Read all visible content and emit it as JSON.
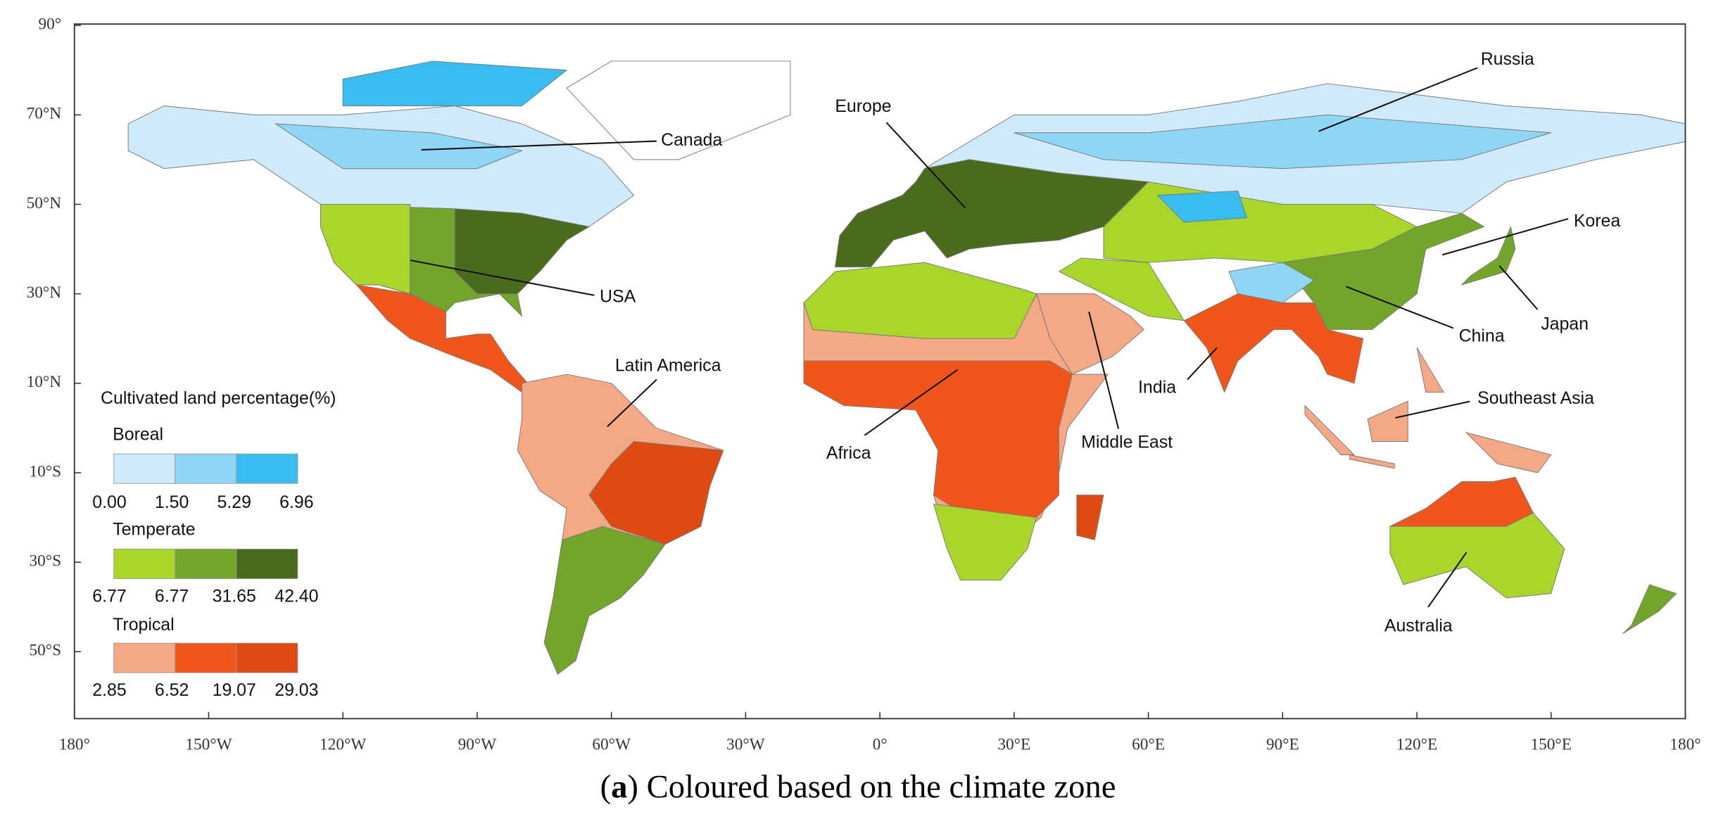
{
  "map": {
    "x_ticks": [
      {
        "value": -180,
        "label": "180°"
      },
      {
        "value": -150,
        "label": "150°W"
      },
      {
        "value": -120,
        "label": "120°W"
      },
      {
        "value": -90,
        "label": "90°W"
      },
      {
        "value": -60,
        "label": "60°W"
      },
      {
        "value": -30,
        "label": "30°W"
      },
      {
        "value": 0,
        "label": "0°"
      },
      {
        "value": 30,
        "label": "30°E"
      },
      {
        "value": 60,
        "label": "60°E"
      },
      {
        "value": 90,
        "label": "90°E"
      },
      {
        "value": 120,
        "label": "120°E"
      },
      {
        "value": 150,
        "label": "150°E"
      },
      {
        "value": 180,
        "label": "180°"
      }
    ],
    "y_ticks": [
      {
        "value": 90,
        "label": "90°"
      },
      {
        "value": 70,
        "label": "70°N"
      },
      {
        "value": 50,
        "label": "50°N"
      },
      {
        "value": 30,
        "label": "30°N"
      },
      {
        "value": 10,
        "label": "10°N"
      },
      {
        "value": -10,
        "label": "10°S"
      },
      {
        "value": -30,
        "label": "30°S"
      },
      {
        "value": -50,
        "label": "50°S"
      }
    ],
    "regions": [
      "Canada",
      "USA",
      "Latin America",
      "Europe",
      "Russia",
      "Korea",
      "Japan",
      "China",
      "India",
      "Middle East",
      "Africa",
      "Southeast Asia",
      "Australia"
    ]
  },
  "legend": {
    "title": "Cultivated land percentage(%)",
    "groups": [
      {
        "name": "Boreal",
        "colors": [
          "#cfeafa",
          "#8fd6f5",
          "#38bdf0"
        ],
        "breaks": [
          "0.00",
          "1.50",
          "5.29",
          "6.96"
        ]
      },
      {
        "name": "Temperate",
        "colors": [
          "#a9d62b",
          "#72a52a",
          "#4a6b1e"
        ],
        "breaks": [
          "6.77",
          "6.77",
          "31.65",
          "42.40"
        ]
      },
      {
        "name": "Tropical",
        "colors": [
          "#f5a886",
          "#f0561a",
          "#de4a12"
        ],
        "breaks": [
          "2.85",
          "6.52",
          "19.07",
          "29.03"
        ]
      }
    ]
  },
  "caption": [
    "(",
    "a",
    ") Coloured based on the climate zone"
  ]
}
